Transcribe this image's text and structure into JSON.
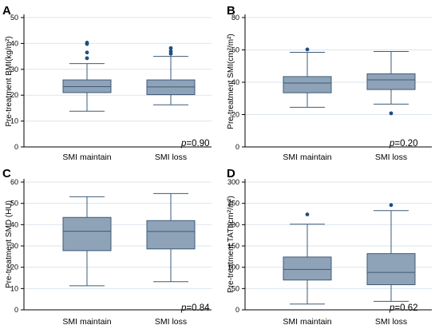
{
  "colors": {
    "box_fill": "#8fa3b8",
    "box_stroke": "#3e5b78",
    "outlier": "#1f4f80",
    "grid": "#dbe5ee"
  },
  "chart_data": [
    {
      "type": "box",
      "panel_letter": "A",
      "ylabel": "Pre-treatment BMI(kg/m²)",
      "ylim": [
        0,
        50
      ],
      "yticks": [
        0,
        10,
        20,
        30,
        40,
        50
      ],
      "grid": true,
      "categories": [
        "SMI maintain",
        "SMI loss"
      ],
      "boxes": [
        {
          "category": "SMI maintain",
          "whisker_low": 13.8,
          "q1": 21,
          "median": 23.3,
          "q3": 25.9,
          "whisker_high": 32.2,
          "outliers": [
            34.3,
            36.5,
            39.8,
            40.3
          ]
        },
        {
          "category": "SMI loss",
          "whisker_low": 16.3,
          "q1": 20.2,
          "median": 23.2,
          "q3": 25.9,
          "whisker_high": 35,
          "outliers": [
            36,
            37,
            38.2
          ]
        }
      ],
      "p_prefix": "p",
      "p_value": "=0.90"
    },
    {
      "type": "box",
      "panel_letter": "B",
      "ylabel": "Pre-treatment SMI(cm²/m²)",
      "ylim": [
        0,
        80
      ],
      "yticks": [
        0,
        20,
        40,
        60,
        80
      ],
      "grid": true,
      "categories": [
        "SMI maintain",
        "SMI loss"
      ],
      "boxes": [
        {
          "category": "SMI maintain",
          "whisker_low": 24.5,
          "q1": 33.5,
          "median": 39.5,
          "q3": 43.5,
          "whisker_high": 58.5,
          "outliers": [
            60.3
          ]
        },
        {
          "category": "SMI loss",
          "whisker_low": 26.5,
          "q1": 35.5,
          "median": 41.5,
          "q3": 45.2,
          "whisker_high": 59,
          "outliers": [
            20.8
          ]
        }
      ],
      "p_prefix": "p",
      "p_value": "=0.20"
    },
    {
      "type": "box",
      "panel_letter": "C",
      "ylabel": "Pre-treatment SMD (HU)",
      "ylim": [
        0,
        60
      ],
      "yticks": [
        0,
        10,
        20,
        30,
        40,
        50,
        60
      ],
      "grid": true,
      "categories": [
        "SMI maintain",
        "SMI loss"
      ],
      "boxes": [
        {
          "category": "SMI maintain",
          "whisker_low": 11.3,
          "q1": 27.8,
          "median": 36.9,
          "q3": 43.4,
          "whisker_high": 53.1,
          "outliers": []
        },
        {
          "category": "SMI loss",
          "whisker_low": 13.2,
          "q1": 28.6,
          "median": 36.8,
          "q3": 41.9,
          "whisker_high": 54.6,
          "outliers": []
        }
      ],
      "p_prefix": "p",
      "p_value": "=0.84"
    },
    {
      "type": "box",
      "panel_letter": "D",
      "ylabel": "Pre-treatment TATI(cm²/m²)",
      "ylim": [
        0,
        300
      ],
      "yticks": [
        0,
        50,
        100,
        150,
        200,
        250,
        300
      ],
      "grid": true,
      "categories": [
        "SMI maintain",
        "SMI loss"
      ],
      "boxes": [
        {
          "category": "SMI maintain",
          "whisker_low": 13.5,
          "q1": 70,
          "median": 95,
          "q3": 124,
          "whisker_high": 201,
          "outliers": [
            224
          ]
        },
        {
          "category": "SMI loss",
          "whisker_low": 20,
          "q1": 59,
          "median": 88,
          "q3": 132,
          "whisker_high": 233,
          "outliers": [
            246
          ]
        }
      ],
      "p_prefix": "p",
      "p_value": "=0.62"
    }
  ]
}
